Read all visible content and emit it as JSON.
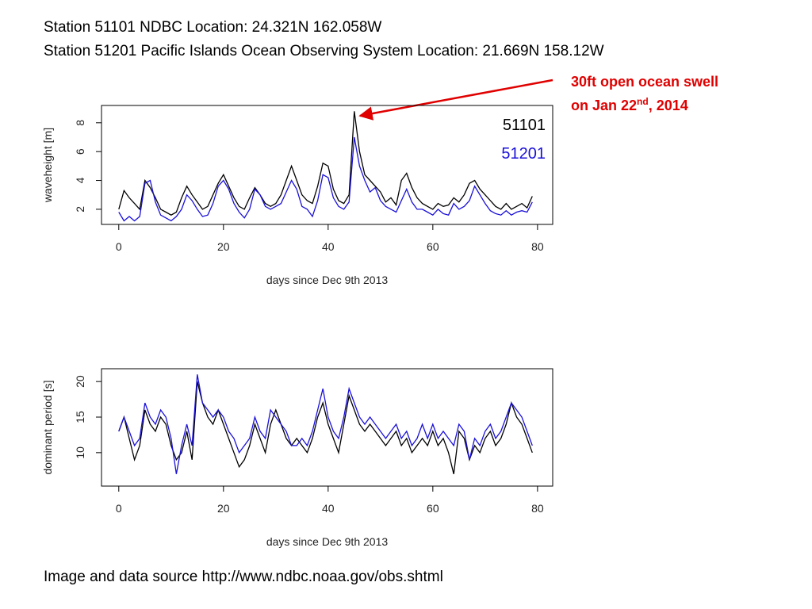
{
  "header": [
    "Station 51101 NDBC Location: 24.321N 162.058W",
    "Station 51201 Pacific Islands Ocean Observing System Location: 21.669N 158.12W"
  ],
  "source": "Image and data source http://www.ndbc.noaa.gov/obs.shtml",
  "chart_data": [
    {
      "type": "line",
      "xlabel": "days since Dec 9th 2013",
      "ylabel": "waveheight [m]",
      "annotation": [
        "30ft open ocean swell",
        "on Jan 22",
        "nd",
        ", 2014"
      ],
      "legend": "top-right",
      "x": [
        0,
        1,
        2,
        3,
        4,
        5,
        6,
        7,
        8,
        9,
        10,
        11,
        12,
        13,
        14,
        15,
        16,
        17,
        18,
        19,
        20,
        21,
        22,
        23,
        24,
        25,
        26,
        27,
        28,
        29,
        30,
        31,
        32,
        33,
        34,
        35,
        36,
        37,
        38,
        39,
        40,
        41,
        42,
        43,
        44,
        45,
        46,
        47,
        48,
        49,
        50,
        51,
        52,
        53,
        54,
        55,
        56,
        57,
        58,
        59,
        60,
        61,
        62,
        63,
        64,
        65,
        66,
        67,
        68,
        69,
        70,
        71,
        72,
        73,
        74,
        75,
        76,
        77,
        78,
        79
      ],
      "xlim": [
        -3.3,
        82.9
      ],
      "xticks": [
        0,
        20,
        40,
        60,
        80
      ],
      "ylim": [
        0.95,
        9.2
      ],
      "yticks": [
        2,
        4,
        6,
        8
      ],
      "series": [
        {
          "name": "51101",
          "color": "#000000",
          "values": [
            2.0,
            3.3,
            2.8,
            2.4,
            2.0,
            4.0,
            3.5,
            2.8,
            2.0,
            1.8,
            1.6,
            1.8,
            2.8,
            3.6,
            3.0,
            2.5,
            2.0,
            2.2,
            3.0,
            3.8,
            4.4,
            3.6,
            2.8,
            2.2,
            2.0,
            2.8,
            3.5,
            3.0,
            2.4,
            2.2,
            2.4,
            3.0,
            4.0,
            5.0,
            4.0,
            3.0,
            2.6,
            2.4,
            3.6,
            5.2,
            5.0,
            3.4,
            2.6,
            2.4,
            3.0,
            8.8,
            6.0,
            4.4,
            4.0,
            3.6,
            3.2,
            2.5,
            2.8,
            2.3,
            4.0,
            4.5,
            3.5,
            2.8,
            2.4,
            2.2,
            2.0,
            2.4,
            2.2,
            2.3,
            2.8,
            2.5,
            3.0,
            3.8,
            4.0,
            3.4,
            3.0,
            2.6,
            2.2,
            2.0,
            2.4,
            2.0,
            2.2,
            2.4,
            2.1,
            2.9
          ]
        },
        {
          "name": "51201",
          "color": "#1a10d8",
          "values": [
            1.8,
            1.2,
            1.5,
            1.2,
            1.5,
            3.8,
            4.0,
            2.5,
            1.6,
            1.4,
            1.2,
            1.5,
            2.0,
            3.0,
            2.6,
            2.0,
            1.5,
            1.6,
            2.4,
            3.6,
            4.0,
            3.4,
            2.4,
            1.8,
            1.4,
            2.0,
            3.4,
            3.0,
            2.2,
            2.0,
            2.2,
            2.4,
            3.2,
            4.0,
            3.4,
            2.2,
            2.0,
            1.5,
            2.6,
            4.4,
            4.2,
            2.8,
            2.2,
            2.0,
            2.5,
            7.0,
            5.0,
            4.0,
            3.2,
            3.5,
            2.6,
            2.2,
            2.0,
            1.8,
            2.6,
            3.4,
            2.5,
            2.0,
            2.0,
            1.8,
            1.6,
            2.0,
            1.7,
            1.6,
            2.4,
            2.0,
            2.2,
            2.6,
            3.6,
            3.0,
            2.4,
            1.9,
            1.7,
            1.6,
            1.9,
            1.6,
            1.8,
            1.9,
            1.8,
            2.5
          ]
        }
      ]
    },
    {
      "type": "line",
      "xlabel": "days since Dec 9th 2013",
      "ylabel": "dominant period [s]",
      "x": [
        0,
        1,
        2,
        3,
        4,
        5,
        6,
        7,
        8,
        9,
        10,
        11,
        12,
        13,
        14,
        15,
        16,
        17,
        18,
        19,
        20,
        21,
        22,
        23,
        24,
        25,
        26,
        27,
        28,
        29,
        30,
        31,
        32,
        33,
        34,
        35,
        36,
        37,
        38,
        39,
        40,
        41,
        42,
        43,
        44,
        45,
        46,
        47,
        48,
        49,
        50,
        51,
        52,
        53,
        54,
        55,
        56,
        57,
        58,
        59,
        60,
        61,
        62,
        63,
        64,
        65,
        66,
        67,
        68,
        69,
        70,
        71,
        72,
        73,
        74,
        75,
        76,
        77,
        78,
        79
      ],
      "xlim": [
        -3.3,
        82.9
      ],
      "xticks": [
        0,
        20,
        40,
        60,
        80
      ],
      "ylim": [
        5.3,
        21.8
      ],
      "yticks": [
        10,
        15,
        20
      ],
      "series": [
        {
          "color": "#000000",
          "values": [
            13,
            15,
            12,
            9,
            11,
            16,
            14,
            13,
            15,
            14,
            11,
            9,
            10,
            13,
            9,
            20,
            17,
            15,
            14,
            16,
            14,
            12,
            10,
            8,
            9,
            11,
            14,
            12,
            10,
            14,
            16,
            14,
            12,
            11,
            12,
            11,
            10,
            12,
            15,
            17,
            14,
            12,
            10,
            14,
            18,
            16,
            14,
            13,
            14,
            13,
            12,
            11,
            12,
            13,
            11,
            12,
            10,
            11,
            12,
            11,
            13,
            11,
            12,
            10,
            7,
            13,
            12,
            9,
            11,
            10,
            12,
            13,
            11,
            12,
            14,
            17,
            15,
            14,
            12,
            10
          ]
        },
        {
          "color": "#1a10d8",
          "values": [
            13,
            15,
            13,
            11,
            12,
            17,
            15,
            14,
            16,
            15,
            12,
            7,
            11,
            14,
            11,
            21,
            17,
            16,
            15,
            16,
            15,
            13,
            12,
            10,
            11,
            12,
            15,
            13,
            12,
            16,
            15,
            14,
            13,
            11,
            11,
            12,
            11,
            13,
            16,
            19,
            15,
            13,
            12,
            15,
            19,
            17,
            15,
            14,
            15,
            14,
            13,
            12,
            13,
            14,
            12,
            13,
            11,
            12,
            14,
            12,
            14,
            12,
            13,
            12,
            11,
            14,
            13,
            9,
            12,
            11,
            13,
            14,
            12,
            13,
            15,
            17,
            16,
            15,
            13,
            11
          ]
        }
      ]
    }
  ]
}
